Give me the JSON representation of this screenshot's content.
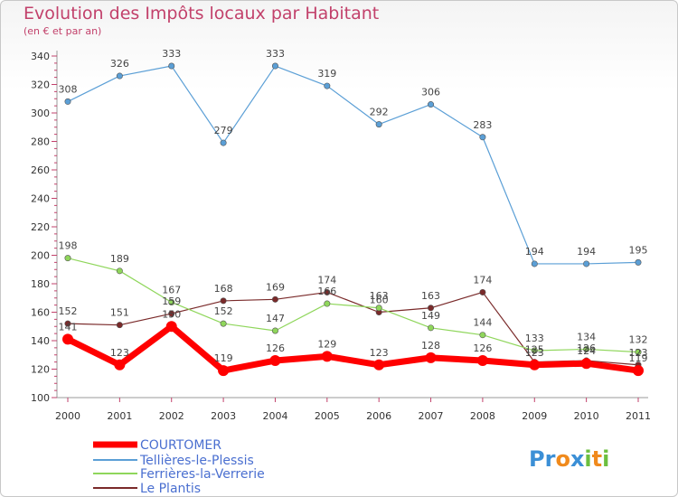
{
  "title": "Evolution des Impôts locaux par Habitant",
  "subtitle": "(en € et par an)",
  "logo": {
    "text": "Proxiti",
    "letters": [
      "P",
      "r",
      "o",
      "x",
      "i",
      "t",
      "i"
    ],
    "colors": [
      "#3b8fd6",
      "#3b8fd6",
      "#f08a1c",
      "#3b8fd6",
      "#6cbf3f",
      "#f08a1c",
      "#6cbf3f"
    ]
  },
  "chart_data": {
    "type": "line",
    "title": "Evolution des Impôts locaux par Habitant",
    "subtitle": "(en € et par an)",
    "xlabel": "",
    "ylabel": "",
    "x": [
      "2000",
      "2001",
      "2002",
      "2003",
      "2004",
      "2005",
      "2006",
      "2007",
      "2008",
      "2009",
      "2010",
      "2011"
    ],
    "ylim": [
      100,
      340
    ],
    "yticks": [
      "100",
      "120",
      "140",
      "160",
      "180",
      "200",
      "220",
      "240",
      "260",
      "280",
      "300",
      "320",
      "340"
    ],
    "grid": false,
    "legend": "bottom-left",
    "series": [
      {
        "name": "COURTOMER",
        "color": "#ff0000",
        "values": [
          141,
          123,
          150,
          119,
          126,
          129,
          123,
          128,
          126,
          123,
          124,
          119
        ],
        "labels": [
          "141",
          "123",
          "150",
          "119",
          "126",
          "129",
          "123",
          "128",
          "126",
          "123",
          "124",
          "119"
        ]
      },
      {
        "name": "Tellières-le-Plessis",
        "color": "#5b9fd6",
        "values": [
          308,
          326,
          333,
          279,
          333,
          319,
          292,
          306,
          283,
          194,
          194,
          195
        ],
        "labels": [
          "308",
          "326",
          "333",
          "279",
          "333",
          "319",
          "292",
          "306",
          "283",
          "194",
          "194",
          "195"
        ]
      },
      {
        "name": "Ferrières-la-Verrerie",
        "color": "#8fd65b",
        "values": [
          198,
          189,
          167,
          152,
          147,
          166,
          163,
          149,
          144,
          133,
          134,
          132
        ],
        "labels": [
          "198",
          "189",
          "167",
          "152",
          "147",
          "166",
          "163",
          "149",
          "144",
          "133",
          "134",
          "132"
        ]
      },
      {
        "name": "Le Plantis",
        "color": "#7a2a2a",
        "values": [
          152,
          151,
          159,
          168,
          169,
          174,
          160,
          163,
          174,
          125,
          126,
          123
        ],
        "labels": [
          "152",
          "151",
          "159",
          "168",
          "169",
          "174",
          "160",
          "163",
          "174",
          "125",
          "126",
          "123"
        ]
      }
    ]
  }
}
